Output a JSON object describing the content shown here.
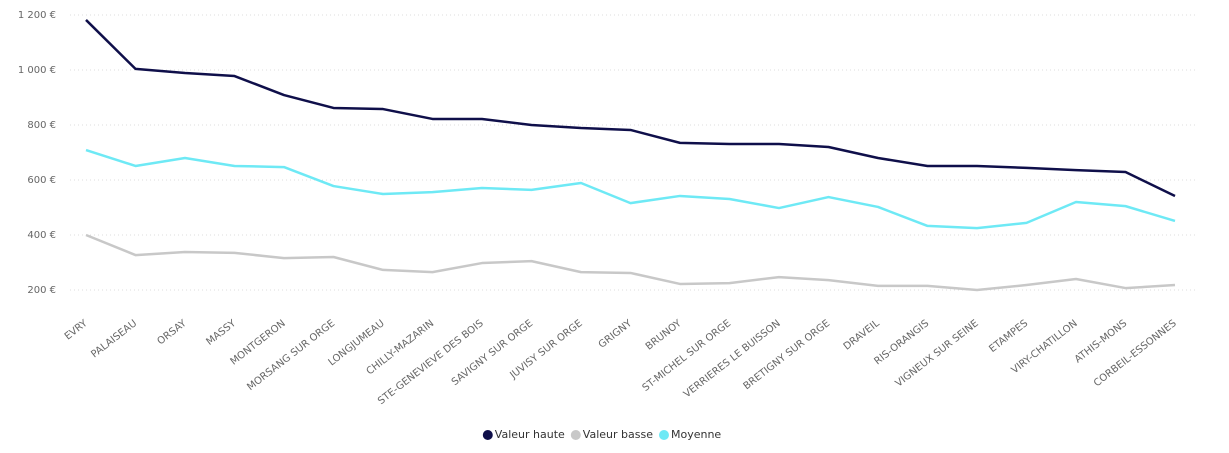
{
  "chart_data": {
    "type": "line",
    "categories": [
      "EVRY",
      "PALAISEAU",
      "ORSAY",
      "MASSY",
      "MONTGERON",
      "MORSANG SUR ORGE",
      "LONGJUMEAU",
      "CHILLY-MAZARIN",
      "STE-GENEVIEVE DES BOIS",
      "SAVIGNY SUR ORGE",
      "JUVISY SUR ORGE",
      "GRIGNY",
      "BRUNOY",
      "ST-MICHEL SUR ORGE",
      "VERRIERES LE BUISSON",
      "BRETIGNY SUR ORGE",
      "DRAVEIL",
      "RIS-ORANGIS",
      "VIGNEUX SUR SEINE",
      "ETAMPES",
      "VIRY-CHATILLON",
      "ATHIS-MONS",
      "CORBEIL-ESSONNES"
    ],
    "series": [
      {
        "name": "Valeur haute",
        "color": "#0f0f4a",
        "values": [
          1182,
          1004,
          989,
          978,
          909,
          862,
          858,
          822,
          822,
          800,
          789,
          782,
          735,
          731,
          731,
          720,
          680,
          651,
          651,
          644,
          636,
          629,
          542
        ]
      },
      {
        "name": "Valeur basse",
        "color": "#c8c8c8",
        "values": [
          400,
          327,
          338,
          335,
          316,
          320,
          273,
          265,
          298,
          305,
          265,
          262,
          222,
          225,
          247,
          236,
          215,
          215,
          200,
          218,
          240,
          207,
          218
        ]
      },
      {
        "name": "Moyenne",
        "color": "#6ee9f5",
        "values": [
          709,
          651,
          680,
          651,
          647,
          578,
          549,
          556,
          571,
          564,
          589,
          516,
          542,
          531,
          498,
          538,
          502,
          433,
          425,
          444,
          520,
          505,
          451
        ]
      }
    ],
    "ylim": [
      150,
      1200
    ],
    "yticks": [
      {
        "value": 200,
        "label": "200 €"
      },
      {
        "value": 400,
        "label": "400 €"
      },
      {
        "value": 600,
        "label": "600 €"
      },
      {
        "value": 800,
        "label": "800 €"
      },
      {
        "value": 1000,
        "label": "1 000 €"
      },
      {
        "value": 1200,
        "label": "1 200 €"
      }
    ],
    "grid": true,
    "legend": "bottom"
  }
}
